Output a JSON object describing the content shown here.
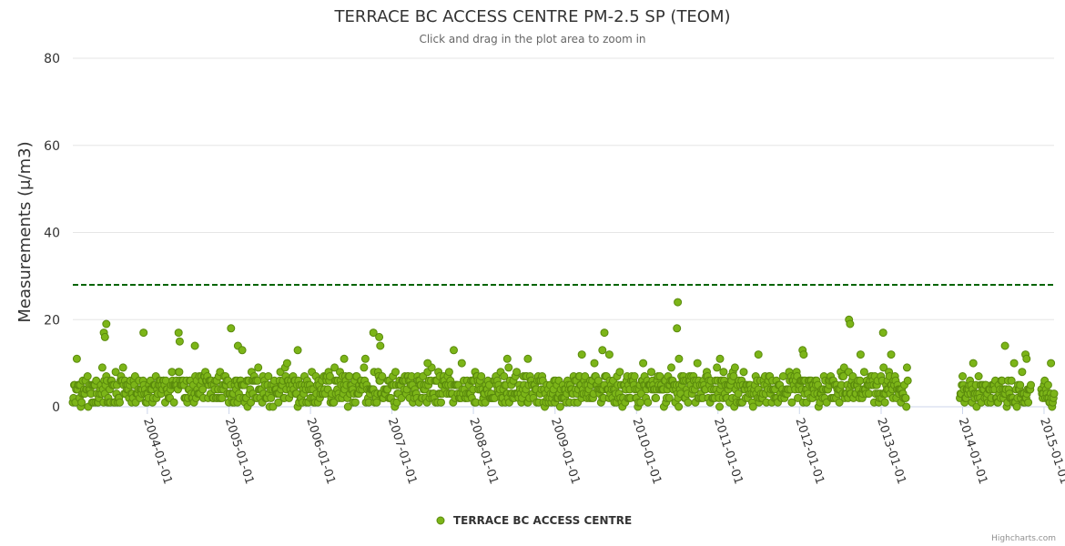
{
  "chart_data": {
    "type": "scatter",
    "title": "TERRACE BC ACCESS CENTRE PM-2.5 SP (TEOM)",
    "subtitle": "Click and drag in the plot area to zoom in",
    "ylabel": "Measurements (μ/m3)",
    "xlabel": "",
    "ylim": [
      0,
      80
    ],
    "yticks": [
      "0",
      "20",
      "40",
      "60",
      "80"
    ],
    "xlim": [
      "2003-02-01",
      "2015-02-15"
    ],
    "xticks": [
      "2004-01-01",
      "2005-01-01",
      "2006-01-01",
      "2007-01-01",
      "2008-01-01",
      "2009-01-01",
      "2010-01-01",
      "2011-01-01",
      "2012-01-01",
      "2013-01-01",
      "2014-01-01",
      "2015-01-01"
    ],
    "threshold": {
      "value": 28,
      "color": "#006400",
      "style": "dashed"
    },
    "series": [
      {
        "name": "TERRACE BC ACCESS CENTRE",
        "color": "#7cb518",
        "segments": [
          {
            "start": "2003-02-01",
            "end": "2013-04-30",
            "baseline": 3,
            "spread": 6
          },
          {
            "start": "2013-12-20",
            "end": "2014-11-05",
            "baseline": 2.5,
            "spread": 5
          },
          {
            "start": "2014-12-20",
            "end": "2015-02-15",
            "baseline": 2,
            "spread": 4
          }
        ],
        "peaks": [
          {
            "x": "2003-07-01",
            "y": 19
          },
          {
            "x": "2003-06-20",
            "y": 17
          },
          {
            "x": "2003-06-25",
            "y": 16
          },
          {
            "x": "2003-12-15",
            "y": 17
          },
          {
            "x": "2004-05-20",
            "y": 17
          },
          {
            "x": "2004-05-25",
            "y": 15
          },
          {
            "x": "2004-08-01",
            "y": 14
          },
          {
            "x": "2005-01-10",
            "y": 18
          },
          {
            "x": "2005-02-10",
            "y": 14
          },
          {
            "x": "2005-03-01",
            "y": 13
          },
          {
            "x": "2005-11-05",
            "y": 13
          },
          {
            "x": "2006-06-01",
            "y": 11
          },
          {
            "x": "2006-10-10",
            "y": 17
          },
          {
            "x": "2006-11-05",
            "y": 16
          },
          {
            "x": "2006-11-10",
            "y": 14
          },
          {
            "x": "2007-06-10",
            "y": 10
          },
          {
            "x": "2008-06-01",
            "y": 11
          },
          {
            "x": "2008-09-01",
            "y": 11
          },
          {
            "x": "2009-05-01",
            "y": 12
          },
          {
            "x": "2009-08-10",
            "y": 17
          },
          {
            "x": "2009-08-01",
            "y": 13
          },
          {
            "x": "2009-09-01",
            "y": 12
          },
          {
            "x": "2010-07-05",
            "y": 24
          },
          {
            "x": "2010-07-01",
            "y": 18
          },
          {
            "x": "2010-07-10",
            "y": 11
          },
          {
            "x": "2011-01-10",
            "y": 11
          },
          {
            "x": "2011-07-01",
            "y": 12
          },
          {
            "x": "2012-01-15",
            "y": 13
          },
          {
            "x": "2012-01-20",
            "y": 12
          },
          {
            "x": "2012-08-10",
            "y": 20
          },
          {
            "x": "2012-08-15",
            "y": 19
          },
          {
            "x": "2012-10-01",
            "y": 12
          },
          {
            "x": "2013-01-10",
            "y": 17
          },
          {
            "x": "2013-02-15",
            "y": 12
          },
          {
            "x": "2014-07-10",
            "y": 14
          },
          {
            "x": "2014-10-10",
            "y": 12
          },
          {
            "x": "2014-10-15",
            "y": 11
          },
          {
            "x": "2015-02-01",
            "y": 10
          }
        ]
      }
    ],
    "legend": {
      "placement": "bottom-center"
    },
    "grid": true
  },
  "credits": "Highcharts.com"
}
